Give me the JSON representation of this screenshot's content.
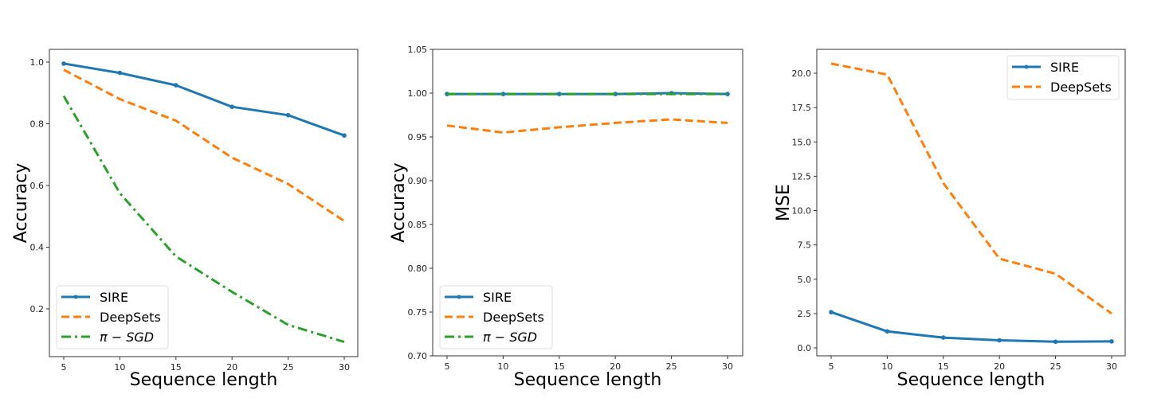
{
  "chart_data": [
    {
      "type": "line",
      "title": "",
      "xlabel": "Sequence length",
      "ylabel": "Accuracy",
      "x": [
        5,
        10,
        15,
        20,
        25,
        30
      ],
      "xticks": [
        "5",
        "10",
        "15",
        "20",
        "25",
        "30"
      ],
      "yticks": [
        "0.2",
        "0.4",
        "0.6",
        "0.8",
        "1.0"
      ],
      "ylim": [
        0.05,
        1.04
      ],
      "grid": false,
      "legend_position": "lower left",
      "series": [
        {
          "name": "SIRE",
          "color": "#1f77b4",
          "style": "solid-marker",
          "values": [
            0.995,
            0.965,
            0.925,
            0.855,
            0.828,
            0.762
          ]
        },
        {
          "name": "DeepSets",
          "color": "#ff7f0e",
          "style": "dashed",
          "values": [
            0.975,
            0.88,
            0.81,
            0.69,
            0.605,
            0.485
          ]
        },
        {
          "name": "π − SGD",
          "color": "#2ca02c",
          "style": "dashdot",
          "values": [
            0.89,
            0.575,
            0.37,
            0.255,
            0.148,
            0.093
          ]
        }
      ]
    },
    {
      "type": "line",
      "title": "",
      "xlabel": "Sequence length",
      "ylabel": "Accuracy",
      "x": [
        5,
        10,
        15,
        20,
        25,
        30
      ],
      "xticks": [
        "5",
        "10",
        "15",
        "20",
        "25",
        "30"
      ],
      "yticks": [
        "0.70",
        "0.75",
        "0.80",
        "0.85",
        "0.90",
        "0.95",
        "1.00",
        "1.05"
      ],
      "ylim": [
        0.7,
        1.05
      ],
      "grid": false,
      "legend_position": "lower left",
      "series": [
        {
          "name": "SIRE",
          "color": "#1f77b4",
          "style": "solid-marker",
          "values": [
            0.999,
            0.999,
            0.999,
            0.999,
            1.0,
            0.999
          ]
        },
        {
          "name": "DeepSets",
          "color": "#ff7f0e",
          "style": "dashed",
          "values": [
            0.963,
            0.955,
            0.961,
            0.966,
            0.97,
            0.966
          ]
        },
        {
          "name": "π − SGD",
          "color": "#2ca02c",
          "style": "dashdot",
          "values": [
            0.999,
            0.999,
            0.999,
            0.999,
            0.999,
            0.999
          ]
        }
      ]
    },
    {
      "type": "line",
      "title": "",
      "xlabel": "Sequence length",
      "ylabel": "MSE",
      "x": [
        5,
        10,
        15,
        20,
        25,
        30
      ],
      "xticks": [
        "5",
        "10",
        "15",
        "20",
        "25",
        "30"
      ],
      "yticks": [
        "0.0",
        "2.5",
        "5.0",
        "7.5",
        "10.0",
        "12.5",
        "15.0",
        "17.5",
        "20.0"
      ],
      "ylim": [
        -0.6,
        21.7
      ],
      "grid": false,
      "legend_position": "upper right",
      "series": [
        {
          "name": "SIRE",
          "color": "#1f77b4",
          "style": "solid-marker",
          "values": [
            2.6,
            1.2,
            0.75,
            0.55,
            0.45,
            0.47
          ]
        },
        {
          "name": "DeepSets",
          "color": "#ff7f0e",
          "style": "dashed",
          "values": [
            20.7,
            19.9,
            12.0,
            6.5,
            5.4,
            2.5
          ]
        }
      ]
    }
  ]
}
